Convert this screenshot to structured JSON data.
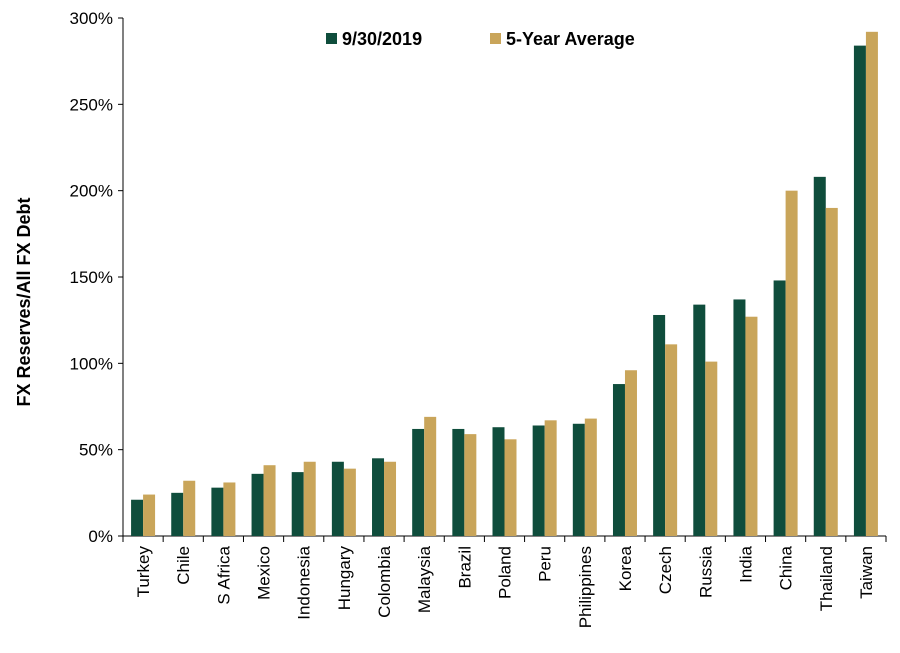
{
  "chart_data": {
    "type": "bar",
    "title": "",
    "xlabel": "",
    "ylabel": "FX Reserves/All FX Debt",
    "ylim": [
      0,
      300
    ],
    "y_unit": "%",
    "yticks": [
      "0%",
      "50%",
      "100%",
      "150%",
      "200%",
      "250%",
      "300%"
    ],
    "grid": false,
    "legend_position": "top-center",
    "categories": [
      "Turkey",
      "Chile",
      "S Africa",
      "Mexico",
      "Indonesia",
      "Hungary",
      "Colombia",
      "Malaysia",
      "Brazil",
      "Poland",
      "Peru",
      "Philippines",
      "Korea",
      "Czech",
      "Russia",
      "India",
      "China",
      "Thailand",
      "Taiwan"
    ],
    "series": [
      {
        "name": "9/30/2019",
        "color": "#0f4d3c",
        "values": [
          21,
          25,
          28,
          36,
          37,
          43,
          45,
          62,
          62,
          63,
          64,
          65,
          88,
          128,
          134,
          137,
          148,
          208,
          284
        ]
      },
      {
        "name": "5-Year Average",
        "color": "#c9a55a",
        "values": [
          24,
          32,
          31,
          41,
          43,
          39,
          43,
          69,
          59,
          56,
          67,
          68,
          96,
          111,
          101,
          127,
          200,
          190,
          292
        ]
      }
    ]
  }
}
